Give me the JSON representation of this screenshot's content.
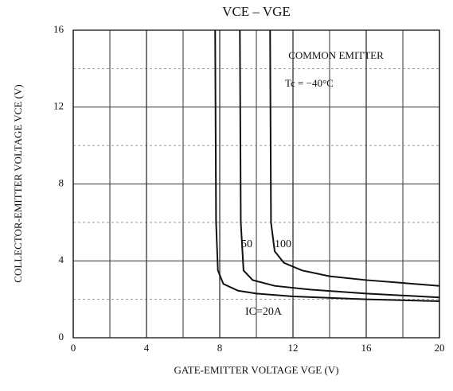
{
  "chart_data": {
    "type": "line",
    "title": "VCE – VGE",
    "x_label": "GATE-EMITTER VOLTAGE   VGE   (V)",
    "y_label": "COLLECTOR-EMITTER VOLTAGE   VCE   (V)",
    "annotations": [
      "COMMON EMITTER",
      "Tc = −40°C"
    ],
    "xlim": [
      0,
      20
    ],
    "ylim": [
      0,
      16
    ],
    "xticks": [
      0,
      4,
      8,
      12,
      16,
      20
    ],
    "yticks": [
      0,
      4,
      8,
      12,
      16
    ],
    "xminor": [
      2,
      6,
      10,
      14,
      18
    ],
    "yminor": [
      2,
      6,
      10,
      14
    ],
    "grid": true,
    "series": [
      {
        "name": "IC=20A",
        "color": "#111111",
        "x": [
          7.75,
          7.8,
          7.9,
          8.2,
          9,
          10,
          12,
          16,
          20
        ],
        "values": [
          16,
          6,
          3.5,
          2.8,
          2.45,
          2.3,
          2.15,
          2.0,
          1.9
        ]
      },
      {
        "name": "50",
        "color": "#111111",
        "x": [
          9.1,
          9.15,
          9.3,
          9.8,
          11,
          13,
          16,
          20
        ],
        "values": [
          16,
          6,
          3.5,
          3.0,
          2.7,
          2.5,
          2.3,
          2.1
        ]
      },
      {
        "name": "100",
        "color": "#111111",
        "x": [
          10.75,
          10.8,
          11,
          11.5,
          12.5,
          14,
          16,
          20
        ],
        "values": [
          16,
          6,
          4.5,
          3.9,
          3.5,
          3.2,
          3.0,
          2.7
        ]
      }
    ]
  }
}
